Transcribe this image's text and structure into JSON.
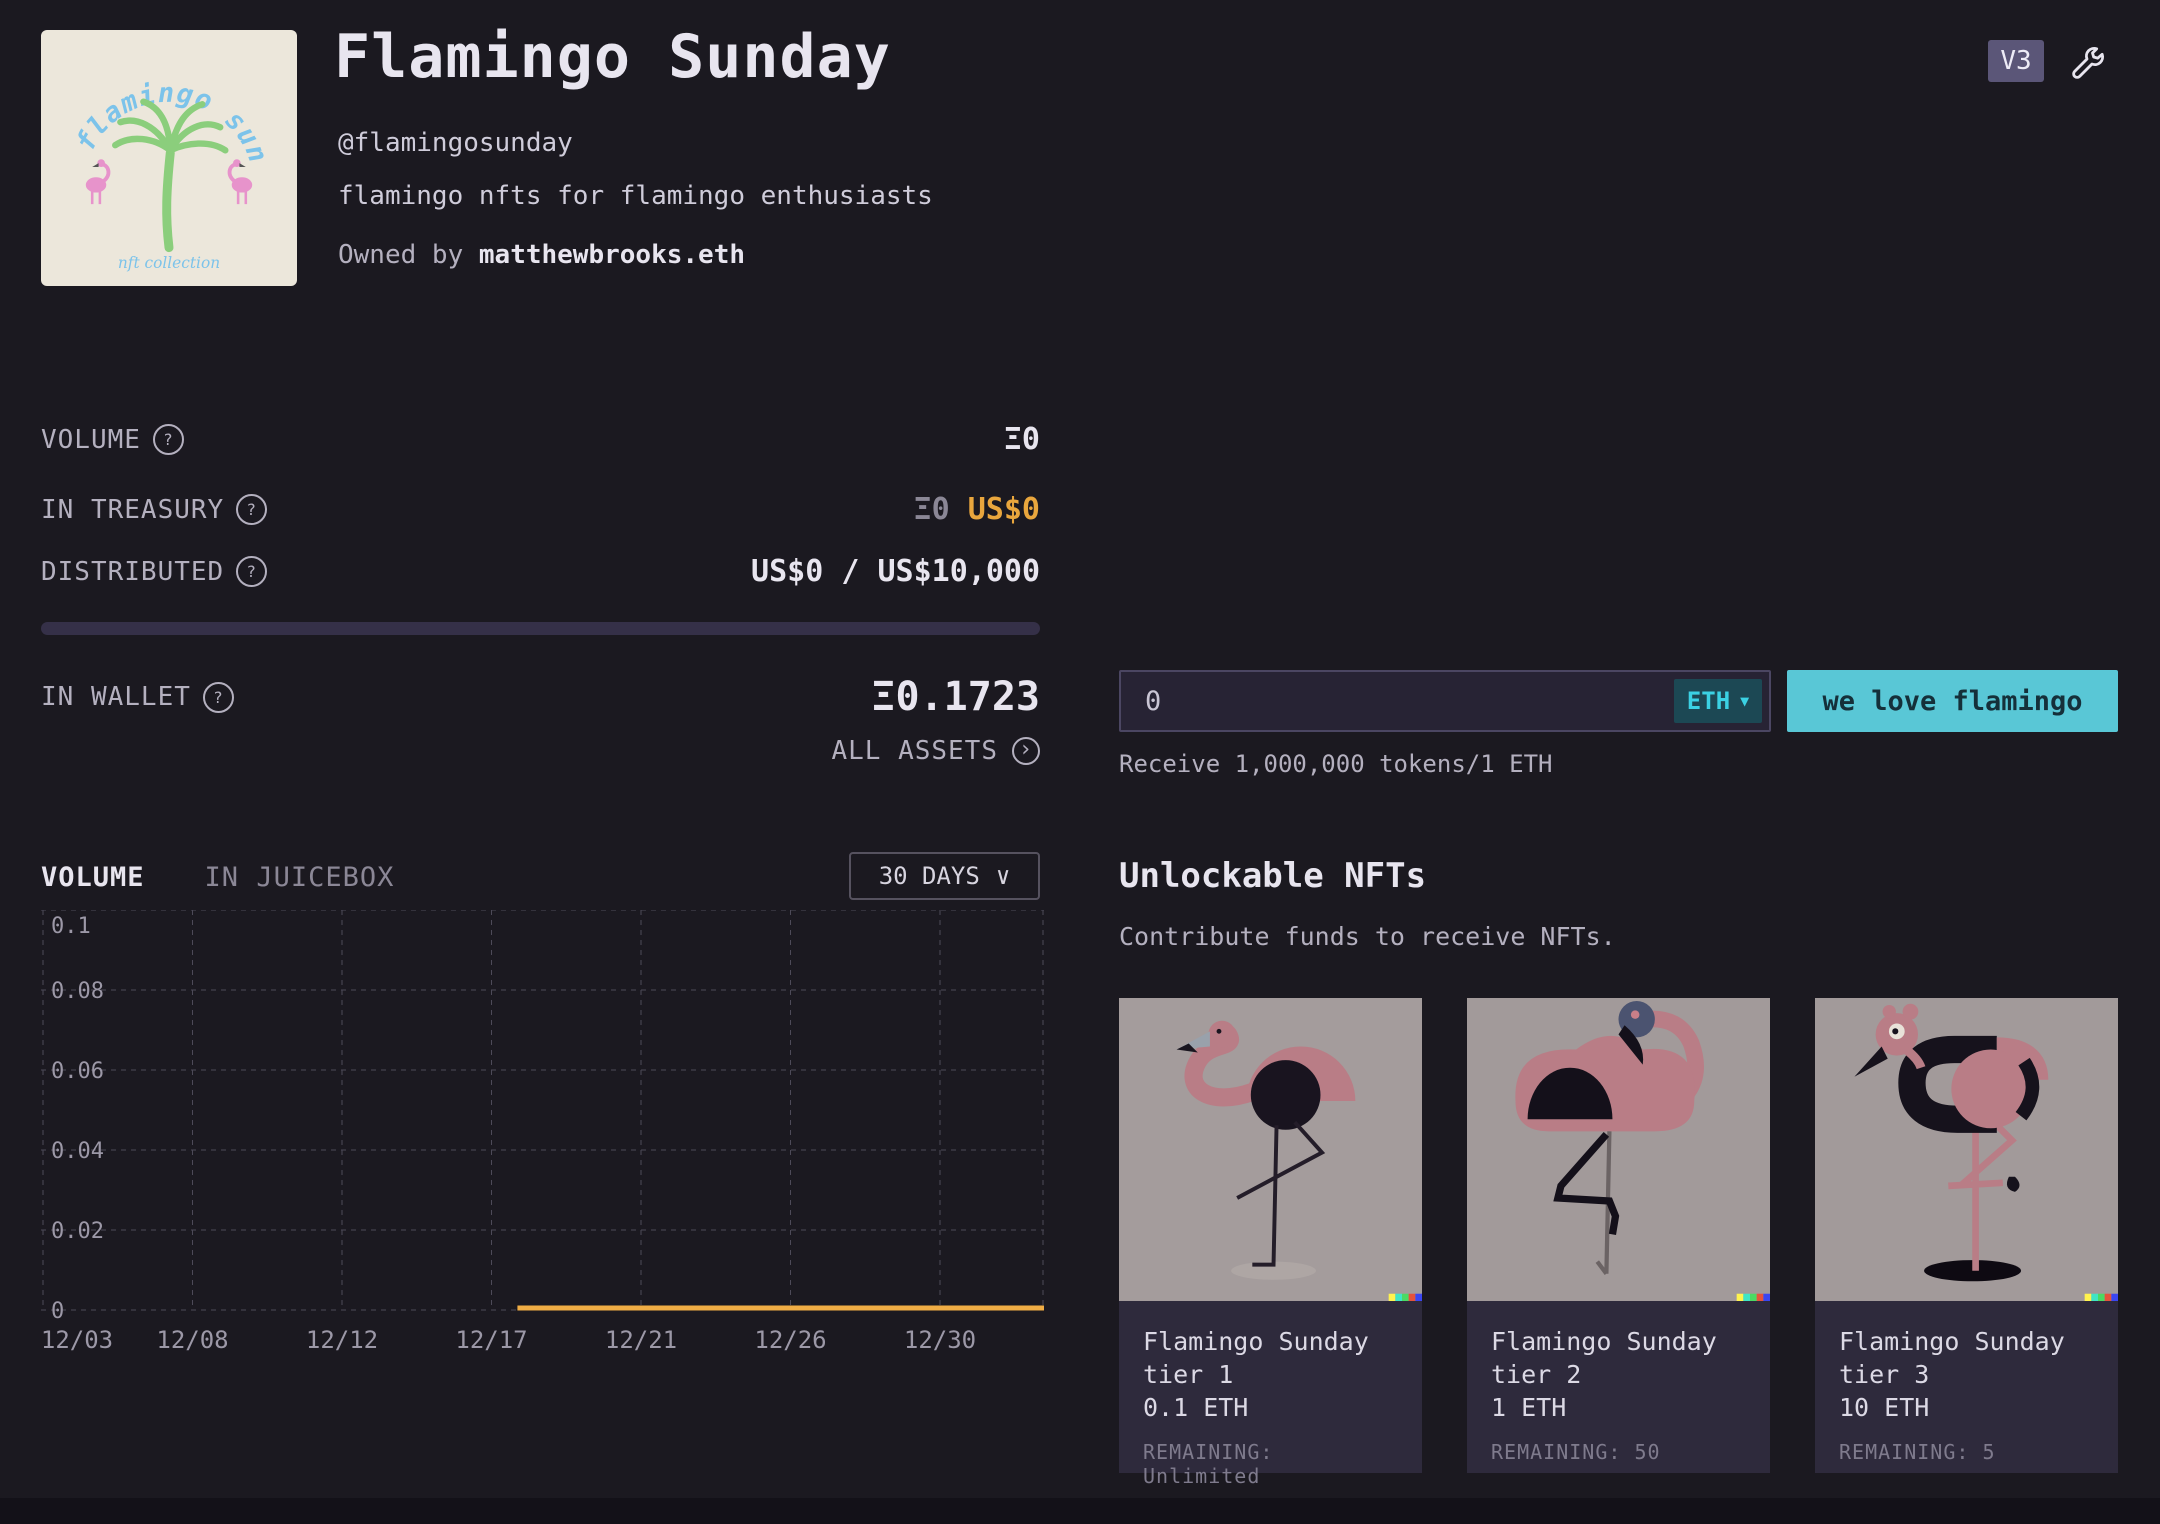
{
  "header": {
    "title": "Flamingo Sunday",
    "handle": "@flamingosunday",
    "description": "flamingo nfts for flamingo enthusiasts",
    "owned_by_label": "Owned by",
    "owner": "matthewbrooks.eth",
    "version_badge": "V3",
    "logo": {
      "arc_text": "flamingo sunday",
      "footer_text": "nft collection"
    }
  },
  "stats": {
    "volume": {
      "label": "VOLUME",
      "value": "Ξ0"
    },
    "in_treasury": {
      "label": "IN TREASURY",
      "eth": "Ξ0",
      "usd": "US$0"
    },
    "distributed": {
      "label": "DISTRIBUTED",
      "value": "US$0 / US$10,000",
      "progress_percent": 0
    },
    "in_wallet": {
      "label": "IN WALLET",
      "value": "Ξ0.1723"
    },
    "all_assets_label": "ALL ASSETS"
  },
  "chart_section": {
    "tabs": [
      {
        "label": "VOLUME",
        "active": true
      },
      {
        "label": "IN JUICEBOX",
        "active": false
      }
    ],
    "range_label": "30 DAYS"
  },
  "chart_data": {
    "type": "line",
    "title": "VOLUME (ETH, 30 days)",
    "x_tick_labels": [
      "12/03",
      "12/08",
      "12/12",
      "12/17",
      "12/21",
      "12/26",
      "12/30"
    ],
    "y_tick_labels": [
      "0",
      "0.02",
      "0.04",
      "0.06",
      "0.08",
      "0.1"
    ],
    "ylim": [
      0,
      0.1
    ],
    "grid": "dashed",
    "legend": "off",
    "series": [
      {
        "name": "volume",
        "note": "flat zero line starting ~12/18 through end of range; no data before",
        "points": [
          {
            "x": "12/18",
            "y": 0
          },
          {
            "x": "12/31",
            "y": 0
          }
        ],
        "start_fraction": 0.475,
        "end_fraction": 1.0
      }
    ]
  },
  "pay": {
    "input_value": "0",
    "currency": "ETH",
    "button_label": "we love flamingo",
    "receive_note": "Receive 1,000,000 tokens/1 ETH"
  },
  "nft_section": {
    "title": "Unlockable NFTs",
    "subtitle": "Contribute funds to receive NFTs.",
    "cards": [
      {
        "name_line1": "Flamingo Sunday",
        "name_line2": "tier 1",
        "price": "0.1 ETH",
        "remaining": "REMAINING: Unlimited"
      },
      {
        "name_line1": "Flamingo Sunday",
        "name_line2": "tier 2",
        "price": "1 ETH",
        "remaining": "REMAINING: 50"
      },
      {
        "name_line1": "Flamingo Sunday",
        "name_line2": "tier 3",
        "price": "10 ETH",
        "remaining": "REMAINING: 5"
      }
    ]
  },
  "icons": {
    "help": "?",
    "arrow_right": "›",
    "chevron_down": "∨",
    "dropdown_triangle": "▼"
  },
  "colors": {
    "page_background": "#1b1920",
    "accent_gold": "#e9a63d",
    "chart_line": "#f0ad45",
    "accent_cyan": "#59c7d6",
    "cyan_text": "#3bd1e3",
    "card_background": "#2e2a3c",
    "nft_image_background": "#a49c9c",
    "badge_background": "#5b5678"
  }
}
